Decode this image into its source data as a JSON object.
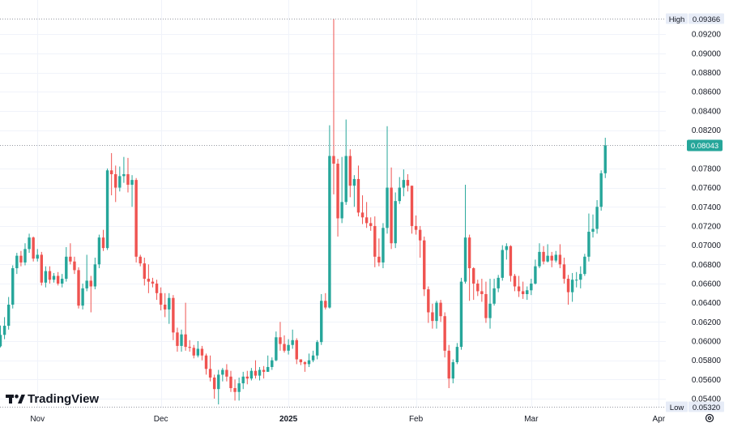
{
  "chart_data": {
    "type": "candlestick",
    "y_ticks": [
      "0.09200",
      "0.09000",
      "0.08800",
      "0.08600",
      "0.08400",
      "0.08200",
      "0.07800",
      "0.07600",
      "0.07400",
      "0.07200",
      "0.07000",
      "0.06800",
      "0.06600",
      "0.06400",
      "0.06200",
      "0.06000",
      "0.05800",
      "0.05600",
      "0.05400"
    ],
    "x_ticks": [
      {
        "label": "Nov",
        "bar": 9,
        "bold": false
      },
      {
        "label": "Dec",
        "bar": 39,
        "bold": false
      },
      {
        "label": "2025",
        "bar": 70,
        "bold": true
      },
      {
        "label": "Feb",
        "bar": 101,
        "bold": false
      },
      {
        "label": "Mar",
        "bar": 129,
        "bold": false
      },
      {
        "label": "Apr",
        "bar": 160,
        "bold": false
      }
    ],
    "high": {
      "label": "High",
      "value": "0.09366"
    },
    "low": {
      "label": "Low",
      "value": "0.05320"
    },
    "last_price": "0.08043",
    "ylim": [
      0.0532,
      0.0937
    ],
    "up_color": "#26a69a",
    "down_color": "#ef5350",
    "candles": [
      [
        0.05946,
        0.06065,
        0.06163,
        0.05935
      ],
      [
        0.06065,
        0.0616,
        0.0625,
        0.0602
      ],
      [
        0.0616,
        0.0638,
        0.0646,
        0.0612
      ],
      [
        0.0638,
        0.0676,
        0.0679,
        0.0634
      ],
      [
        0.0676,
        0.0689,
        0.0692,
        0.067
      ],
      [
        0.0689,
        0.0682,
        0.0694,
        0.0678
      ],
      [
        0.0682,
        0.0696,
        0.0702,
        0.0679
      ],
      [
        0.0696,
        0.0708,
        0.0712,
        0.0692
      ],
      [
        0.0708,
        0.0686,
        0.0709,
        0.0683
      ],
      [
        0.0686,
        0.069,
        0.0696,
        0.0683
      ],
      [
        0.069,
        0.0661,
        0.0693,
        0.0658
      ],
      [
        0.0661,
        0.0673,
        0.0678,
        0.0656
      ],
      [
        0.0673,
        0.0664,
        0.0678,
        0.066
      ],
      [
        0.0664,
        0.0668,
        0.0671,
        0.0661
      ],
      [
        0.0668,
        0.066,
        0.0672,
        0.0658
      ],
      [
        0.066,
        0.0665,
        0.067,
        0.0656
      ],
      [
        0.0665,
        0.0688,
        0.0698,
        0.0662
      ],
      [
        0.0688,
        0.0683,
        0.0702,
        0.068
      ],
      [
        0.0683,
        0.0674,
        0.0688,
        0.067
      ],
      [
        0.0674,
        0.0637,
        0.0677,
        0.0634
      ],
      [
        0.0637,
        0.0655,
        0.066,
        0.0633
      ],
      [
        0.0655,
        0.0663,
        0.069,
        0.0652
      ],
      [
        0.0663,
        0.0657,
        0.0668,
        0.063
      ],
      [
        0.0657,
        0.068,
        0.0687,
        0.0654
      ],
      [
        0.068,
        0.0708,
        0.0711,
        0.0676
      ],
      [
        0.0708,
        0.0697,
        0.0716,
        0.0694
      ],
      [
        0.0697,
        0.0778,
        0.078,
        0.0695
      ],
      [
        0.0778,
        0.0774,
        0.0796,
        0.0752
      ],
      [
        0.0774,
        0.076,
        0.0783,
        0.0745
      ],
      [
        0.076,
        0.0772,
        0.0782,
        0.0756
      ],
      [
        0.0772,
        0.0774,
        0.0792,
        0.0765
      ],
      [
        0.0774,
        0.0763,
        0.0791,
        0.0755
      ],
      [
        0.0763,
        0.0768,
        0.0773,
        0.074
      ],
      [
        0.0768,
        0.0688,
        0.077,
        0.0682
      ],
      [
        0.0688,
        0.0681,
        0.069,
        0.0678
      ],
      [
        0.0681,
        0.0665,
        0.0687,
        0.0658
      ],
      [
        0.0665,
        0.0662,
        0.068,
        0.065
      ],
      [
        0.0662,
        0.066,
        0.0666,
        0.0656
      ],
      [
        0.066,
        0.065,
        0.0664,
        0.0643
      ],
      [
        0.065,
        0.0638,
        0.0656,
        0.0632
      ],
      [
        0.0638,
        0.0633,
        0.065,
        0.0625
      ],
      [
        0.0633,
        0.0645,
        0.065,
        0.0618
      ],
      [
        0.0645,
        0.0609,
        0.0648,
        0.0601
      ],
      [
        0.0609,
        0.0595,
        0.0614,
        0.0589
      ],
      [
        0.0595,
        0.0607,
        0.0612,
        0.0589
      ],
      [
        0.0607,
        0.0594,
        0.064,
        0.059
      ],
      [
        0.0594,
        0.0593,
        0.0601,
        0.0589
      ],
      [
        0.0593,
        0.0585,
        0.0596,
        0.0582
      ],
      [
        0.0585,
        0.0592,
        0.06,
        0.0583
      ],
      [
        0.0592,
        0.0585,
        0.0595,
        0.058
      ],
      [
        0.0585,
        0.0571,
        0.0587,
        0.0565
      ],
      [
        0.0571,
        0.0562,
        0.0585,
        0.0558
      ],
      [
        0.0562,
        0.055,
        0.0565,
        0.054
      ],
      [
        0.055,
        0.0565,
        0.057,
        0.0534
      ],
      [
        0.0565,
        0.057,
        0.0572,
        0.0558
      ],
      [
        0.057,
        0.0563,
        0.0576,
        0.0558
      ],
      [
        0.0563,
        0.0551,
        0.0569,
        0.0547
      ],
      [
        0.0551,
        0.0547,
        0.056,
        0.0538
      ],
      [
        0.0547,
        0.0556,
        0.0562,
        0.0538
      ],
      [
        0.0556,
        0.0563,
        0.0568,
        0.055
      ],
      [
        0.0563,
        0.0561,
        0.0569,
        0.0555
      ],
      [
        0.0561,
        0.0569,
        0.0572,
        0.0559
      ],
      [
        0.0569,
        0.0564,
        0.058,
        0.0561
      ],
      [
        0.0564,
        0.057,
        0.0573,
        0.0559
      ],
      [
        0.057,
        0.0568,
        0.0574,
        0.0561
      ],
      [
        0.0568,
        0.0573,
        0.0585,
        0.0568
      ],
      [
        0.0573,
        0.058,
        0.0583,
        0.057
      ],
      [
        0.058,
        0.0604,
        0.061,
        0.0579
      ],
      [
        0.0604,
        0.0597,
        0.062,
        0.059
      ],
      [
        0.0597,
        0.059,
        0.0606,
        0.0588
      ],
      [
        0.059,
        0.0596,
        0.0602,
        0.0586
      ],
      [
        0.0596,
        0.0601,
        0.0612,
        0.0592
      ],
      [
        0.0601,
        0.0581,
        0.0603,
        0.0576
      ],
      [
        0.0581,
        0.0578,
        0.0581,
        0.0575
      ],
      [
        0.0578,
        0.0576,
        0.0579,
        0.0568
      ],
      [
        0.0576,
        0.058,
        0.0587,
        0.0573
      ],
      [
        0.058,
        0.0585,
        0.059,
        0.0578
      ],
      [
        0.0585,
        0.0599,
        0.0601,
        0.0581
      ],
      [
        0.0599,
        0.0642,
        0.0649,
        0.0596
      ],
      [
        0.0642,
        0.0635,
        0.065,
        0.0633
      ],
      [
        0.0635,
        0.0793,
        0.0825,
        0.0634
      ],
      [
        0.0793,
        0.0785,
        0.0936,
        0.0753
      ],
      [
        0.0785,
        0.0728,
        0.079,
        0.0709
      ],
      [
        0.0728,
        0.0745,
        0.0792,
        0.0723
      ],
      [
        0.0745,
        0.0793,
        0.0831,
        0.0742
      ],
      [
        0.0793,
        0.0762,
        0.08,
        0.075
      ],
      [
        0.0762,
        0.0769,
        0.0773,
        0.074
      ],
      [
        0.0769,
        0.0734,
        0.0783,
        0.073
      ],
      [
        0.0734,
        0.0729,
        0.0752,
        0.0722
      ],
      [
        0.0729,
        0.0723,
        0.0745,
        0.0718
      ],
      [
        0.0723,
        0.072,
        0.0729,
        0.0715
      ],
      [
        0.072,
        0.0688,
        0.073,
        0.0677
      ],
      [
        0.0688,
        0.0682,
        0.0707,
        0.0678
      ],
      [
        0.0682,
        0.0718,
        0.0723,
        0.0676
      ],
      [
        0.0718,
        0.076,
        0.0824,
        0.0712
      ],
      [
        0.076,
        0.0702,
        0.0781,
        0.0696
      ],
      [
        0.0702,
        0.0746,
        0.0755,
        0.0697
      ],
      [
        0.0746,
        0.076,
        0.0771,
        0.0743
      ],
      [
        0.076,
        0.0768,
        0.0779,
        0.0751
      ],
      [
        0.0768,
        0.0762,
        0.0774,
        0.0756
      ],
      [
        0.0762,
        0.072,
        0.0762,
        0.0712
      ],
      [
        0.072,
        0.0716,
        0.0731,
        0.0711
      ],
      [
        0.0716,
        0.0705,
        0.072,
        0.0687
      ],
      [
        0.0705,
        0.0654,
        0.0709,
        0.0647
      ],
      [
        0.0654,
        0.063,
        0.0657,
        0.0619
      ],
      [
        0.063,
        0.0621,
        0.0639,
        0.0613
      ],
      [
        0.0621,
        0.064,
        0.0642,
        0.0613
      ],
      [
        0.064,
        0.0626,
        0.0643,
        0.062
      ],
      [
        0.0626,
        0.059,
        0.063,
        0.0583
      ],
      [
        0.059,
        0.0561,
        0.0596,
        0.0551
      ],
      [
        0.0561,
        0.0578,
        0.0581,
        0.0556
      ],
      [
        0.0578,
        0.0594,
        0.0598,
        0.0576
      ],
      [
        0.0594,
        0.0662,
        0.0666,
        0.0591
      ],
      [
        0.0662,
        0.0708,
        0.0763,
        0.066
      ],
      [
        0.0708,
        0.0676,
        0.0711,
        0.0642
      ],
      [
        0.0676,
        0.066,
        0.0677,
        0.0643
      ],
      [
        0.066,
        0.0652,
        0.0664,
        0.0647
      ],
      [
        0.0652,
        0.0649,
        0.0665,
        0.0641
      ],
      [
        0.0649,
        0.0624,
        0.0662,
        0.0619
      ],
      [
        0.0624,
        0.0639,
        0.0665,
        0.0613
      ],
      [
        0.0639,
        0.0655,
        0.0665,
        0.0637
      ],
      [
        0.0655,
        0.0666,
        0.0669,
        0.0651
      ],
      [
        0.0666,
        0.0695,
        0.07,
        0.0663
      ],
      [
        0.0695,
        0.0699,
        0.0702,
        0.0685
      ],
      [
        0.0699,
        0.0668,
        0.07,
        0.0662
      ],
      [
        0.0668,
        0.0657,
        0.067,
        0.0652
      ],
      [
        0.0657,
        0.0652,
        0.0668,
        0.0646
      ],
      [
        0.0652,
        0.0649,
        0.0662,
        0.0644
      ],
      [
        0.0649,
        0.0653,
        0.0657,
        0.0643
      ],
      [
        0.0653,
        0.066,
        0.0665,
        0.0648
      ],
      [
        0.066,
        0.0678,
        0.0685,
        0.0659
      ],
      [
        0.0678,
        0.0693,
        0.0702,
        0.0676
      ],
      [
        0.0693,
        0.0683,
        0.0699,
        0.068
      ],
      [
        0.0683,
        0.0689,
        0.0701,
        0.0682
      ],
      [
        0.0689,
        0.0684,
        0.0693,
        0.0677
      ],
      [
        0.0684,
        0.069,
        0.0694,
        0.0682
      ],
      [
        0.069,
        0.068,
        0.0701,
        0.0676
      ],
      [
        0.068,
        0.0665,
        0.0687,
        0.066
      ],
      [
        0.0665,
        0.0651,
        0.0669,
        0.0638
      ],
      [
        0.0651,
        0.0664,
        0.0671,
        0.0641
      ],
      [
        0.0664,
        0.0664,
        0.0672,
        0.0656
      ],
      [
        0.0664,
        0.067,
        0.0678,
        0.0655
      ],
      [
        0.067,
        0.0688,
        0.0691,
        0.0668
      ],
      [
        0.0688,
        0.0714,
        0.0733,
        0.0683
      ],
      [
        0.0714,
        0.0717,
        0.0732,
        0.0708
      ],
      [
        0.0717,
        0.074,
        0.0747,
        0.0712
      ],
      [
        0.074,
        0.0775,
        0.0778,
        0.0736
      ],
      [
        0.0775,
        0.08043,
        0.0812,
        0.077
      ]
    ]
  }
}
